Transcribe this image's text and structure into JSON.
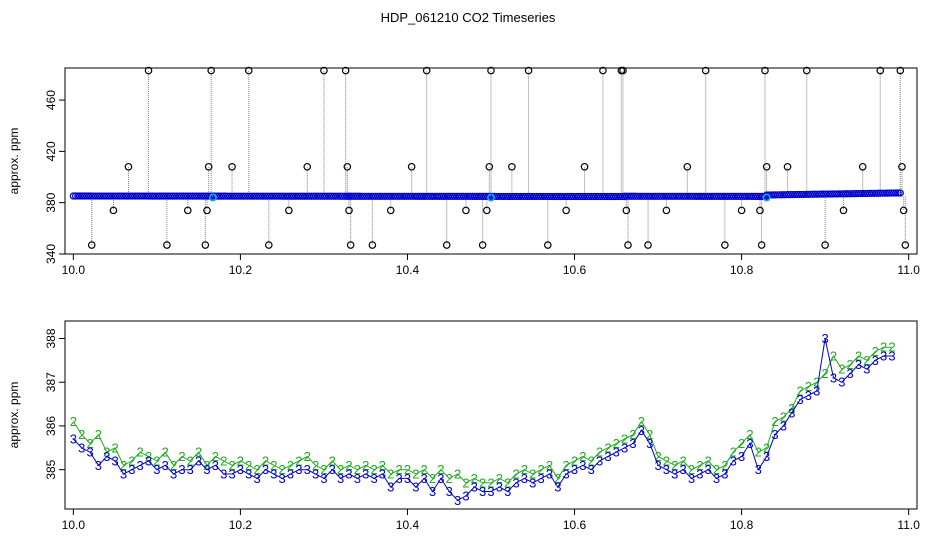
{
  "title": "HDP_061210  CO2 Timeseries",
  "colors": {
    "raw_point_stroke": "#000000",
    "raw_line": "#808080",
    "dense_blue": "#0000cc",
    "cyan_marker": "#00bbdd",
    "series_2": "#22aa22",
    "series_3": "#0000cc"
  },
  "chart_data": [
    {
      "type": "scatter",
      "panel": "top",
      "title": "HDP_061210  CO2 Timeseries",
      "xlabel": "",
      "ylabel": "approx. ppm",
      "xlim": [
        9.99,
        11.01
      ],
      "ylim": [
        340,
        485
      ],
      "xticks": [
        "10.0",
        "10.2",
        "10.4",
        "10.6",
        "10.8",
        "11.0"
      ],
      "yticks": [
        "340",
        "380",
        "420",
        "460"
      ],
      "x_start": 10.0,
      "x_end": 10.99,
      "baseline_segments": [
        {
          "x0": 10.0,
          "x1": 10.33,
          "y0": 385.2,
          "y1": 385.0
        },
        {
          "x0": 10.33,
          "x1": 10.66,
          "y0": 385.0,
          "y1": 384.8
        },
        {
          "x0": 10.66,
          "x1": 10.83,
          "y0": 385.0,
          "y1": 384.9
        },
        {
          "x0": 10.83,
          "x1": 10.99,
          "y0": 386.0,
          "y1": 387.6
        }
      ],
      "spikes": [
        {
          "x": 10.022,
          "y": 347
        },
        {
          "x": 10.048,
          "y": 374
        },
        {
          "x": 10.066,
          "y": 408
        },
        {
          "x": 10.09,
          "y": 483
        },
        {
          "x": 10.112,
          "y": 347
        },
        {
          "x": 10.137,
          "y": 374
        },
        {
          "x": 10.158,
          "y": 347
        },
        {
          "x": 10.16,
          "y": 374
        },
        {
          "x": 10.162,
          "y": 408
        },
        {
          "x": 10.165,
          "y": 483
        },
        {
          "x": 10.19,
          "y": 408
        },
        {
          "x": 10.21,
          "y": 483
        },
        {
          "x": 10.234,
          "y": 347
        },
        {
          "x": 10.258,
          "y": 374
        },
        {
          "x": 10.28,
          "y": 408
        },
        {
          "x": 10.3,
          "y": 483
        },
        {
          "x": 10.326,
          "y": 483
        },
        {
          "x": 10.328,
          "y": 408
        },
        {
          "x": 10.33,
          "y": 374
        },
        {
          "x": 10.332,
          "y": 347
        },
        {
          "x": 10.358,
          "y": 347
        },
        {
          "x": 10.38,
          "y": 374
        },
        {
          "x": 10.405,
          "y": 408
        },
        {
          "x": 10.423,
          "y": 483
        },
        {
          "x": 10.447,
          "y": 347
        },
        {
          "x": 10.47,
          "y": 374
        },
        {
          "x": 10.49,
          "y": 347
        },
        {
          "x": 10.495,
          "y": 374
        },
        {
          "x": 10.498,
          "y": 408
        },
        {
          "x": 10.5,
          "y": 483
        },
        {
          "x": 10.525,
          "y": 408
        },
        {
          "x": 10.545,
          "y": 483
        },
        {
          "x": 10.568,
          "y": 347
        },
        {
          "x": 10.59,
          "y": 374
        },
        {
          "x": 10.612,
          "y": 408
        },
        {
          "x": 10.634,
          "y": 483
        },
        {
          "x": 10.656,
          "y": 483
        },
        {
          "x": 10.658,
          "y": 483
        },
        {
          "x": 10.662,
          "y": 374
        },
        {
          "x": 10.664,
          "y": 347
        },
        {
          "x": 10.688,
          "y": 347
        },
        {
          "x": 10.71,
          "y": 374
        },
        {
          "x": 10.735,
          "y": 408
        },
        {
          "x": 10.757,
          "y": 483
        },
        {
          "x": 10.78,
          "y": 347
        },
        {
          "x": 10.8,
          "y": 374
        },
        {
          "x": 10.822,
          "y": 374
        },
        {
          "x": 10.824,
          "y": 347
        },
        {
          "x": 10.828,
          "y": 483
        },
        {
          "x": 10.83,
          "y": 408
        },
        {
          "x": 10.855,
          "y": 408
        },
        {
          "x": 10.878,
          "y": 483
        },
        {
          "x": 10.9,
          "y": 347
        },
        {
          "x": 10.922,
          "y": 374
        },
        {
          "x": 10.945,
          "y": 408
        },
        {
          "x": 10.966,
          "y": 483
        },
        {
          "x": 10.99,
          "y": 483
        },
        {
          "x": 10.992,
          "y": 408
        },
        {
          "x": 10.994,
          "y": 374
        },
        {
          "x": 10.996,
          "y": 347
        }
      ],
      "cyan_points": [
        {
          "x": 10.167,
          "y": 384
        },
        {
          "x": 10.5,
          "y": 384
        },
        {
          "x": 10.83,
          "y": 384
        }
      ],
      "grid": false
    },
    {
      "type": "line",
      "panel": "bottom",
      "xlabel": "",
      "ylabel": "approx. ppm",
      "xlim": [
        9.99,
        11.01
      ],
      "ylim": [
        384.1,
        388.4
      ],
      "xticks": [
        "10.0",
        "10.2",
        "10.4",
        "10.6",
        "10.8",
        "11.0"
      ],
      "yticks": [
        "385",
        "386",
        "387",
        "388"
      ],
      "point_glyphs": [
        "2",
        "3"
      ],
      "series": [
        {
          "glyph": "2",
          "x": [
            10.0,
            10.01,
            10.02,
            10.03,
            10.04,
            10.05,
            10.06,
            10.07,
            10.08,
            10.09,
            10.1,
            10.11,
            10.12,
            10.13,
            10.14,
            10.15,
            10.16,
            10.17,
            10.18,
            10.19,
            10.2,
            10.21,
            10.22,
            10.23,
            10.24,
            10.25,
            10.26,
            10.27,
            10.28,
            10.29,
            10.3,
            10.31,
            10.32,
            10.33,
            10.34,
            10.35,
            10.36,
            10.37,
            10.38,
            10.39,
            10.4,
            10.41,
            10.42,
            10.43,
            10.44,
            10.45,
            10.46,
            10.47,
            10.48,
            10.49,
            10.5,
            10.51,
            10.52,
            10.53,
            10.54,
            10.55,
            10.56,
            10.57,
            10.58,
            10.59,
            10.6,
            10.61,
            10.62,
            10.63,
            10.64,
            10.65,
            10.66,
            10.67,
            10.68,
            10.69,
            10.7,
            10.71,
            10.72,
            10.73,
            10.74,
            10.75,
            10.76,
            10.77,
            10.78,
            10.79,
            10.8,
            10.81,
            10.82,
            10.83,
            10.84,
            10.85,
            10.86,
            10.87,
            10.88,
            10.89,
            10.9,
            10.91,
            10.92,
            10.93,
            10.94,
            10.95,
            10.96,
            10.97,
            10.98
          ],
          "values": [
            386.1,
            385.8,
            385.6,
            385.8,
            385.4,
            385.5,
            385.1,
            385.2,
            385.4,
            385.3,
            385.2,
            385.4,
            385.1,
            385.3,
            385.2,
            385.4,
            385.1,
            385.3,
            385.2,
            385.1,
            385.2,
            385.1,
            385.0,
            385.2,
            385.1,
            385.0,
            385.1,
            385.2,
            385.3,
            385.1,
            385.0,
            385.2,
            385.0,
            385.1,
            385.0,
            385.1,
            385.0,
            385.1,
            384.9,
            385.0,
            385.0,
            384.9,
            385.0,
            384.8,
            385.0,
            384.8,
            384.9,
            384.7,
            384.8,
            384.7,
            384.7,
            384.8,
            384.7,
            384.9,
            385.0,
            384.9,
            385.0,
            385.1,
            384.8,
            385.1,
            385.2,
            385.3,
            385.2,
            385.4,
            385.5,
            385.6,
            385.7,
            385.8,
            386.1,
            385.8,
            385.3,
            385.2,
            385.1,
            385.2,
            385.0,
            385.1,
            385.2,
            385.0,
            385.1,
            385.4,
            385.6,
            385.8,
            385.4,
            385.5,
            386.1,
            386.2,
            386.4,
            386.8,
            386.9,
            387.0,
            387.2,
            387.6,
            387.3,
            387.4,
            387.6,
            387.5,
            387.7,
            387.8,
            387.8
          ]
        },
        {
          "glyph": "3",
          "x": [
            10.0,
            10.01,
            10.02,
            10.03,
            10.04,
            10.05,
            10.06,
            10.07,
            10.08,
            10.09,
            10.1,
            10.11,
            10.12,
            10.13,
            10.14,
            10.15,
            10.16,
            10.17,
            10.18,
            10.19,
            10.2,
            10.21,
            10.22,
            10.23,
            10.24,
            10.25,
            10.26,
            10.27,
            10.28,
            10.29,
            10.3,
            10.31,
            10.32,
            10.33,
            10.34,
            10.35,
            10.36,
            10.37,
            10.38,
            10.39,
            10.4,
            10.41,
            10.42,
            10.43,
            10.44,
            10.45,
            10.46,
            10.47,
            10.48,
            10.49,
            10.5,
            10.51,
            10.52,
            10.53,
            10.54,
            10.55,
            10.56,
            10.57,
            10.58,
            10.59,
            10.6,
            10.61,
            10.62,
            10.63,
            10.64,
            10.65,
            10.66,
            10.67,
            10.68,
            10.69,
            10.7,
            10.71,
            10.72,
            10.73,
            10.74,
            10.75,
            10.76,
            10.77,
            10.78,
            10.79,
            10.8,
            10.81,
            10.82,
            10.83,
            10.84,
            10.85,
            10.86,
            10.87,
            10.88,
            10.89,
            10.9,
            10.91,
            10.92,
            10.93,
            10.94,
            10.95,
            10.96,
            10.97,
            10.98
          ],
          "values": [
            385.7,
            385.5,
            385.4,
            385.1,
            385.3,
            385.2,
            384.9,
            385.0,
            385.1,
            385.2,
            385.0,
            385.1,
            384.9,
            385.0,
            385.0,
            385.2,
            385.0,
            385.1,
            384.9,
            384.9,
            385.0,
            384.9,
            384.8,
            385.0,
            384.9,
            384.8,
            384.9,
            385.0,
            385.0,
            384.9,
            384.8,
            385.0,
            384.8,
            384.9,
            384.8,
            384.9,
            384.8,
            384.9,
            384.6,
            384.8,
            384.8,
            384.6,
            384.8,
            384.5,
            384.8,
            384.5,
            384.3,
            384.4,
            384.6,
            384.5,
            384.5,
            384.6,
            384.5,
            384.7,
            384.8,
            384.7,
            384.8,
            384.9,
            384.6,
            384.9,
            385.0,
            385.1,
            385.0,
            385.2,
            385.3,
            385.4,
            385.5,
            385.6,
            385.9,
            385.6,
            385.1,
            385.0,
            384.9,
            385.0,
            384.8,
            384.9,
            385.0,
            384.8,
            384.9,
            385.2,
            385.3,
            385.6,
            385.0,
            385.3,
            385.8,
            386.0,
            386.3,
            386.6,
            386.7,
            386.8,
            388.0,
            387.1,
            387.0,
            387.2,
            387.4,
            387.3,
            387.5,
            387.6,
            387.6
          ]
        }
      ],
      "grid": false
    }
  ]
}
